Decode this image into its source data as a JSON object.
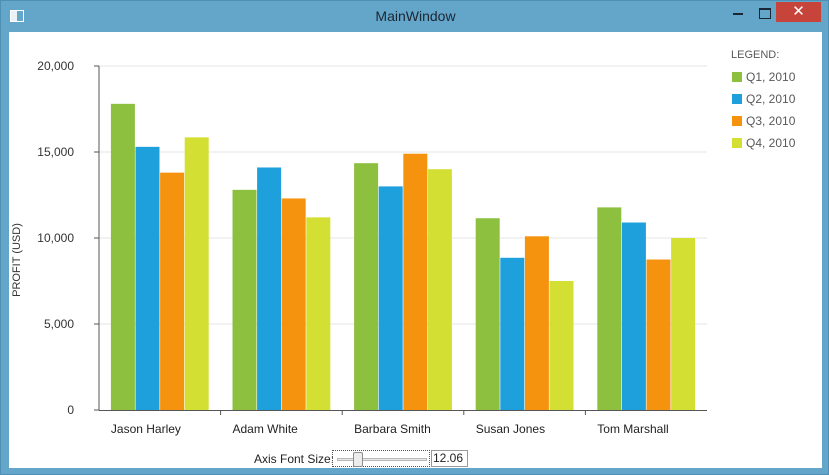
{
  "window": {
    "title": "MainWindow",
    "close_glyph": "✕",
    "icons": [
      "app-window-icon",
      "minimize-icon",
      "maximize-icon",
      "close-icon"
    ]
  },
  "controls": {
    "slider_label": "Axis Font Size:",
    "slider_value": "12.06",
    "slider_fraction": 0.2
  },
  "chart_data": {
    "type": "bar",
    "categories": [
      "Jason Harley",
      "Adam White",
      "Barbara Smith",
      "Susan Jones",
      "Tom Marshall"
    ],
    "series": [
      {
        "name": "Q1, 2010",
        "color": "#8dc03f",
        "values": [
          17800,
          12800,
          14350,
          11150,
          11780
        ]
      },
      {
        "name": "Q2, 2010",
        "color": "#1ea0dd",
        "values": [
          15300,
          14100,
          13000,
          8850,
          10900
        ]
      },
      {
        "name": "Q3, 2010",
        "color": "#f5930f",
        "values": [
          13800,
          12300,
          14900,
          10100,
          8750
        ]
      },
      {
        "name": "Q4, 2010",
        "color": "#d4df33",
        "values": [
          15850,
          11200,
          14000,
          7500,
          10000
        ]
      }
    ],
    "title": "",
    "xlabel": "",
    "ylabel": "PROFIT (USD)",
    "ylim": [
      0,
      20000
    ],
    "yticks": [
      "0",
      "5,000",
      "10,000",
      "15,000",
      "20,000"
    ],
    "ytick_values": [
      0,
      5000,
      10000,
      15000,
      20000
    ],
    "grid": true,
    "legend_title": "LEGEND:",
    "legend_position": "top-right"
  }
}
